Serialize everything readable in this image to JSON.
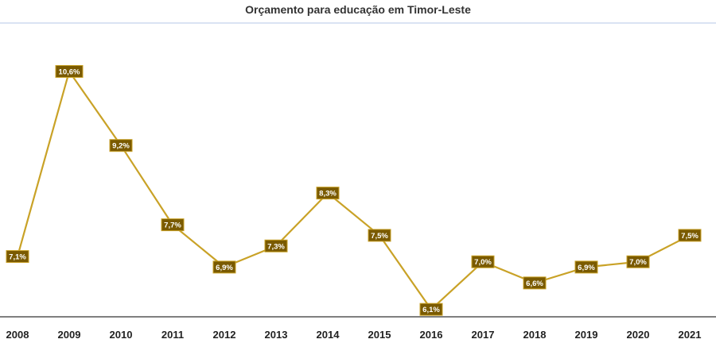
{
  "chart_data": {
    "type": "line",
    "title": "Orçamento para educação em Timor-Leste",
    "categories": [
      "2008",
      "2009",
      "2010",
      "2011",
      "2012",
      "2013",
      "2014",
      "2015",
      "2016",
      "2017",
      "2018",
      "2019",
      "2020",
      "2021"
    ],
    "series": [
      {
        "values": [
          7.1,
          10.6,
          9.2,
          7.7,
          6.9,
          7.3,
          8.3,
          7.5,
          6.1,
          7.0,
          6.6,
          6.9,
          7.0,
          7.5
        ],
        "labels": [
          "7,1%",
          "10,6%",
          "9,2%",
          "7,7%",
          "6,9%",
          "7,3%",
          "8,3%",
          "7,5%",
          "6,1%",
          "7,0%",
          "6,6%",
          "6,9%",
          "7,0%",
          "7,5%"
        ]
      }
    ],
    "ylim": [
      6.05,
      11.05
    ],
    "grid": false,
    "colors": {
      "line": "#C9A227",
      "label_bg": "#7A5A00",
      "label_border": "#C9A227",
      "title_rule": "#B4C7E7",
      "axis": "#333333"
    }
  }
}
